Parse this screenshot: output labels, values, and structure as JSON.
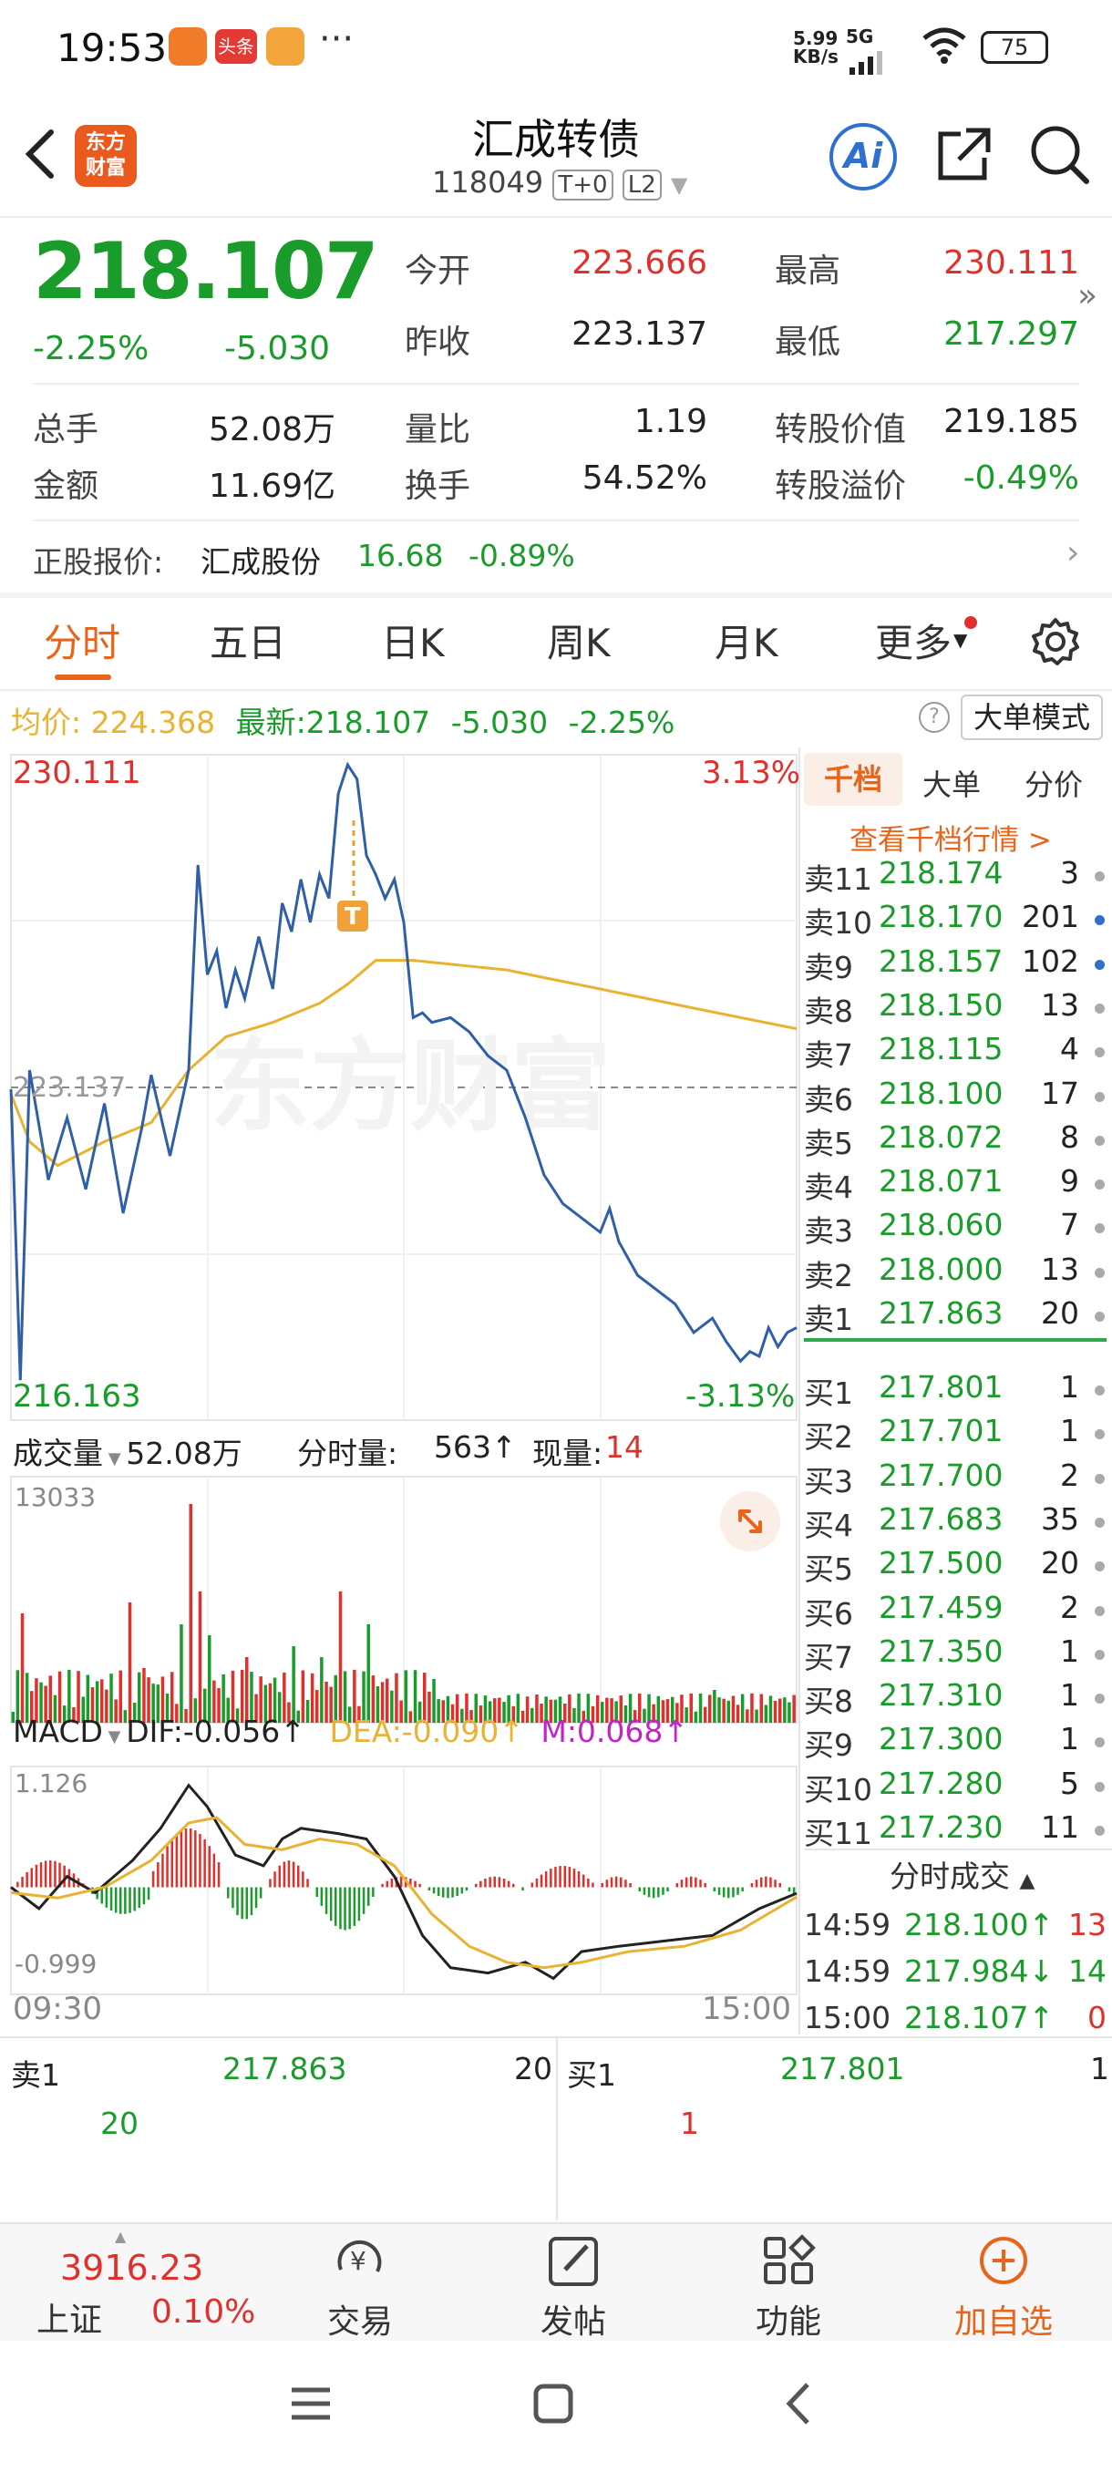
{
  "status": {
    "time": "19:53",
    "net_speed": "5.99\nKB/s",
    "net_speed_top": "5.99",
    "net_speed_bot": "KB/s",
    "network": "5G",
    "battery": "75",
    "more": "···",
    "app_icon_2": "头条"
  },
  "header": {
    "brand_line1": "东方",
    "brand_line2": "财富",
    "title": "汇成转债",
    "code": "118049",
    "badge1": "T+0",
    "badge2": "L2",
    "ai": "Ai"
  },
  "quote": {
    "price": "218.107",
    "change_pct": "-2.25%",
    "change": "-5.030",
    "open_label": "今开",
    "open": "223.666",
    "high_label": "最高",
    "high": "230.111",
    "prev_label": "昨收",
    "prev": "223.137",
    "low_label": "最低",
    "low": "217.297",
    "vol_label": "总手",
    "vol": "52.08万",
    "ratio_label": "量比",
    "ratio": "1.19",
    "conv_label": "转股价值",
    "conv": "219.185",
    "amt_label": "金额",
    "amt": "11.69亿",
    "turn_label": "换手",
    "turn": "54.52%",
    "prem_label": "转股溢价",
    "prem": "-0.49%"
  },
  "stock": {
    "label": "正股报价:",
    "name": "汇成股份",
    "price": "16.68",
    "pct": "-0.89%"
  },
  "tabs": [
    "分时",
    "五日",
    "日K",
    "周K",
    "月K",
    "更多"
  ],
  "info": {
    "avg_label": "均价:",
    "avg": "224.368",
    "last_label": "最新:",
    "last": "218.107",
    "chg": "-5.030",
    "pct": "-2.25%",
    "help": "?",
    "mode": "大单模式"
  },
  "chart": {
    "top_price": "230.111",
    "top_pct": "3.13%",
    "bot_price": "216.163",
    "bot_pct": "-3.13%",
    "ref": "223.137",
    "watermark": "东方财富",
    "trade_marker": "T"
  },
  "vol_header": {
    "select": "成交量",
    "total": "52.08万",
    "min_label": "分时量:",
    "min_val": "563↑",
    "now_label": "现量:",
    "now_val": "14",
    "max": "13033"
  },
  "macd_header": {
    "select": "MACD",
    "dif": "DIF:-0.056↑",
    "dea": "DEA:-0.090↑",
    "m": "M:0.068↑",
    "max": "1.126",
    "min": "-0.999"
  },
  "time_axis": {
    "start": "09:30",
    "end": "15:00"
  },
  "ob_tabs": [
    "千档",
    "大单",
    "分价"
  ],
  "ob_link": "查看千档行情 >",
  "asks": [
    {
      "l": "卖11",
      "p": "218.174",
      "v": "3",
      "c": "gray"
    },
    {
      "l": "卖10",
      "p": "218.170",
      "v": "201",
      "c": "blue"
    },
    {
      "l": "卖9",
      "p": "218.157",
      "v": "102",
      "c": "blue"
    },
    {
      "l": "卖8",
      "p": "218.150",
      "v": "13",
      "c": "gray"
    },
    {
      "l": "卖7",
      "p": "218.115",
      "v": "4",
      "c": "gray"
    },
    {
      "l": "卖6",
      "p": "218.100",
      "v": "17",
      "c": "gray"
    },
    {
      "l": "卖5",
      "p": "218.072",
      "v": "8",
      "c": "gray"
    },
    {
      "l": "卖4",
      "p": "218.071",
      "v": "9",
      "c": "gray"
    },
    {
      "l": "卖3",
      "p": "218.060",
      "v": "7",
      "c": "gray"
    },
    {
      "l": "卖2",
      "p": "218.000",
      "v": "13",
      "c": "gray"
    },
    {
      "l": "卖1",
      "p": "217.863",
      "v": "20",
      "c": "gray"
    }
  ],
  "bids": [
    {
      "l": "买1",
      "p": "217.801",
      "v": "1",
      "c": "gray"
    },
    {
      "l": "买2",
      "p": "217.701",
      "v": "1",
      "c": "gray"
    },
    {
      "l": "买3",
      "p": "217.700",
      "v": "2",
      "c": "gray"
    },
    {
      "l": "买4",
      "p": "217.683",
      "v": "35",
      "c": "gray"
    },
    {
      "l": "买5",
      "p": "217.500",
      "v": "20",
      "c": "gray"
    },
    {
      "l": "买6",
      "p": "217.459",
      "v": "2",
      "c": "gray"
    },
    {
      "l": "买7",
      "p": "217.350",
      "v": "1",
      "c": "gray"
    },
    {
      "l": "买8",
      "p": "217.310",
      "v": "1",
      "c": "gray"
    },
    {
      "l": "买9",
      "p": "217.300",
      "v": "1",
      "c": "gray"
    },
    {
      "l": "买10",
      "p": "217.280",
      "v": "5",
      "c": "gray"
    },
    {
      "l": "买11",
      "p": "217.230",
      "v": "11",
      "c": "gray"
    }
  ],
  "ticks_title": "分时成交",
  "ticks": [
    {
      "t": "14:59",
      "p": "218.100↑",
      "v": "13",
      "pc": "green",
      "vc": "red"
    },
    {
      "t": "14:59",
      "p": "217.984↓",
      "v": "14",
      "pc": "green",
      "vc": "green"
    },
    {
      "t": "15:00",
      "p": "218.107↑",
      "v": "0",
      "pc": "green",
      "vc": "red"
    }
  ],
  "bottom_quote": {
    "sell_label": "卖1",
    "sell_price": "217.863",
    "sell_vol": "20",
    "buy_label": "买1",
    "buy_price": "217.801",
    "buy_vol": "1",
    "sell_q": "20",
    "buy_q": "1"
  },
  "bottom_bar": {
    "index_val": "3916.23",
    "index_name": "上证",
    "index_pct": "0.10%",
    "trade": "交易",
    "post": "发帖",
    "func": "功能",
    "add": "加自选"
  },
  "colors": {
    "up": "#e0302c",
    "down": "#1a9c2a",
    "price_line": "#2f5fa8",
    "avg_line": "#e8b233",
    "accent": "#e8641b"
  }
}
